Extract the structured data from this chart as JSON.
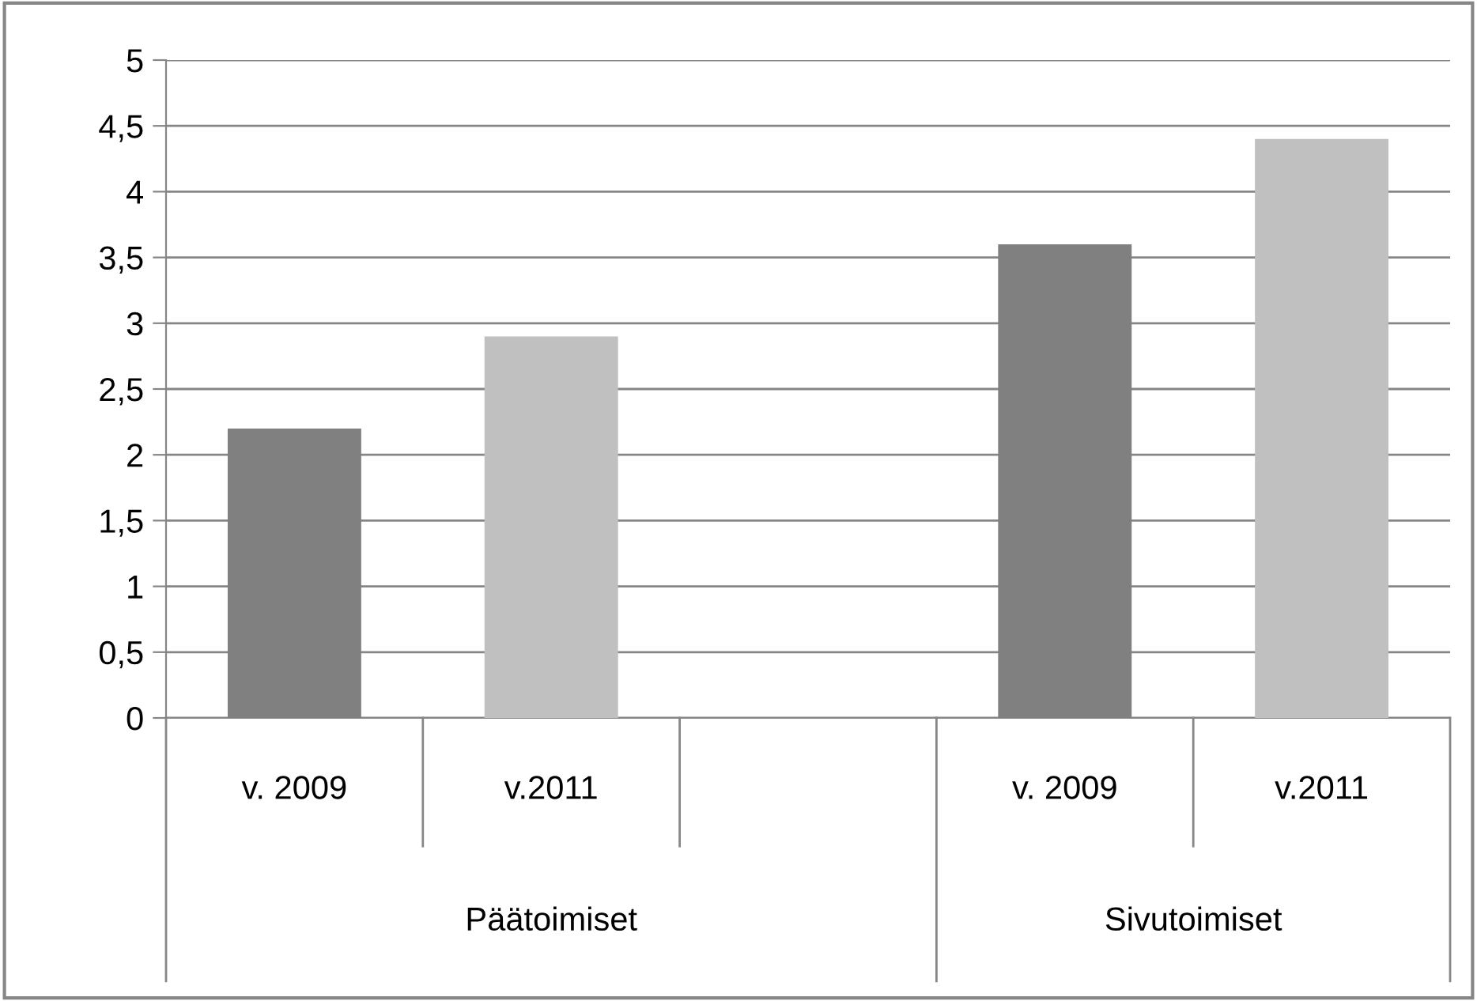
{
  "chart_data": {
    "type": "bar",
    "categories": [
      "v. 2009",
      "v.2011",
      null,
      "v. 2009",
      "v.2011"
    ],
    "values": [
      2.2,
      2.9,
      null,
      3.6,
      4.4
    ],
    "colors": [
      "#808080",
      "#c0c0c0",
      null,
      "#808080",
      "#c0c0c0"
    ],
    "annotations": [
      "Päätoimiset",
      "Sivutoimiset"
    ],
    "ylim": [
      0,
      5
    ],
    "yticks": [
      0,
      {
        "value": 0.5,
        "label": "0,5"
      },
      1,
      {
        "value": 1.5,
        "label": "1,5"
      },
      2,
      {
        "value": 2.5,
        "label": "2,5"
      },
      3,
      {
        "value": 3.5,
        "label": "3,5"
      },
      4,
      {
        "value": 4.5,
        "label": "4,5"
      },
      5
    ],
    "grid": "y",
    "legend": false
  }
}
